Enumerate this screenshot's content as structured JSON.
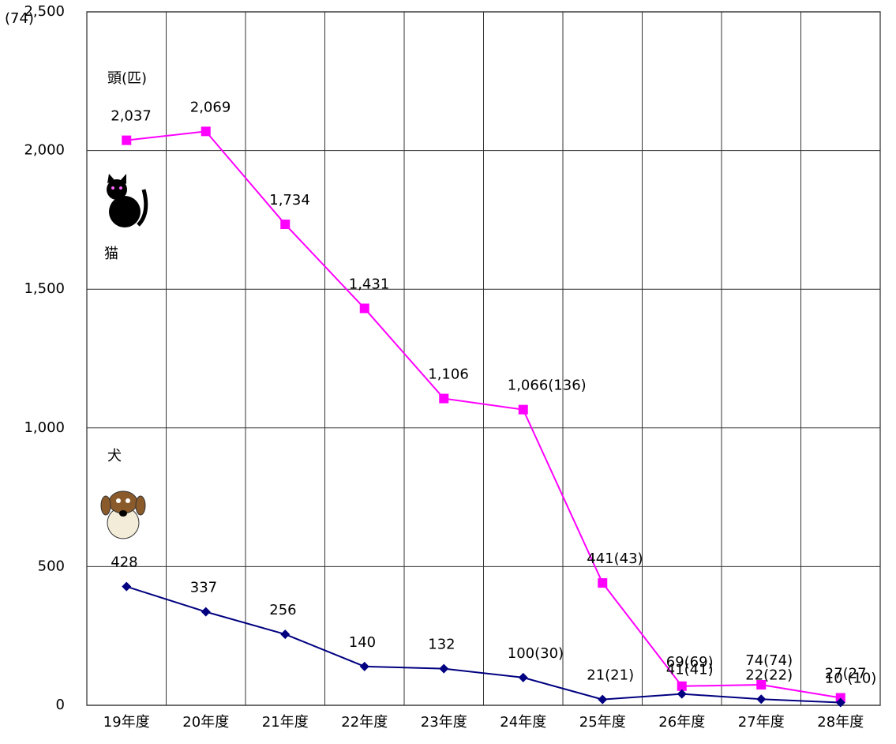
{
  "chart_data": {
    "type": "line",
    "categories": [
      "19年度",
      "20年度",
      "21年度",
      "22年度",
      "23年度",
      "24年度",
      "25年度",
      "26年度",
      "27年度",
      "28年度"
    ],
    "series": [
      {
        "name": "猫",
        "color": "#ff00ff",
        "marker": "square",
        "values": [
          2037,
          2069,
          1734,
          1431,
          1106,
          1066,
          441,
          69,
          74,
          27
        ],
        "value_labels": [
          "2,037",
          "2,069",
          "1,734",
          "1,431",
          "1,106",
          "1,066(136)",
          "441(43)",
          "69(69)",
          "74(74)",
          "27(27"
        ]
      },
      {
        "name": "犬",
        "color": "#000080",
        "marker": "diamond",
        "values": [
          428,
          337,
          256,
          140,
          132,
          100,
          21,
          41,
          22,
          10
        ],
        "value_labels": [
          "428",
          "337",
          "256",
          "140",
          "132",
          "100(30)",
          "21(21)",
          "41(41)",
          "22(22)",
          "10 (10)"
        ]
      }
    ],
    "unit_label": "頭(匹)",
    "annotation": "(74)",
    "ylim": [
      0,
      2500
    ],
    "yticks": [
      0,
      {
        "value": 500,
        "label": "500"
      },
      {
        "value": 1000,
        "label": "1,000"
      },
      {
        "value": 1500,
        "label": "1,500"
      },
      {
        "value": 2000,
        "label": "2,000"
      },
      {
        "value": 2500,
        "label": "2,500"
      }
    ],
    "grid": true
  }
}
